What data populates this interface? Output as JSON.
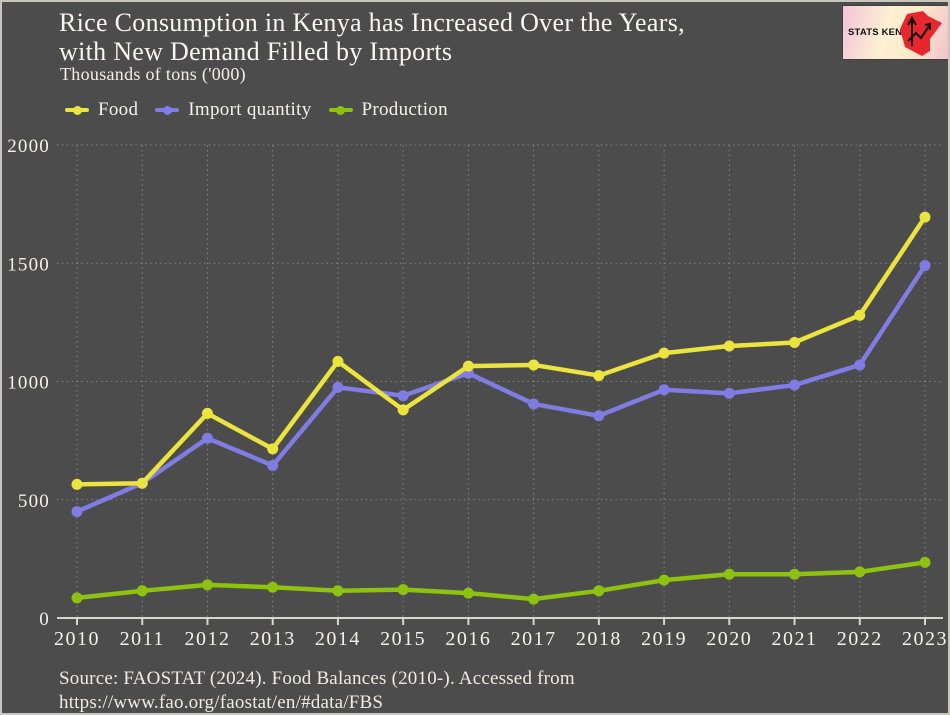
{
  "header": {
    "title_line1": "Rice Consumption in Kenya has Increased Over the Years,",
    "title_line2": "with New Demand Filled by Imports",
    "subtitle": "Thousands of tons ('000)"
  },
  "logo": {
    "text": "STATS KENYA"
  },
  "chart_data": {
    "type": "line",
    "title": "Rice Consumption in Kenya has Increased Over the Years, with New Demand Filled by Imports",
    "subtitle": "Thousands of tons ('000)",
    "ylabel": "Thousands of tons ('000)",
    "xlabel": "",
    "x": [
      2010,
      2011,
      2012,
      2013,
      2014,
      2015,
      2016,
      2017,
      2018,
      2019,
      2020,
      2021,
      2022,
      2023
    ],
    "ylim": [
      0,
      2000
    ],
    "yticks": [
      0,
      500,
      1000,
      1500,
      2000
    ],
    "grid": true,
    "legend_position": "top-left",
    "series": [
      {
        "name": "Food",
        "color": "#ECE43E",
        "values": [
          565,
          570,
          865,
          715,
          1085,
          880,
          1065,
          1070,
          1025,
          1120,
          1150,
          1165,
          1280,
          1695
        ]
      },
      {
        "name": "Import quantity",
        "color": "#7F7DE3",
        "values": [
          450,
          570,
          760,
          645,
          975,
          940,
          1035,
          905,
          855,
          965,
          950,
          985,
          1070,
          1490
        ]
      },
      {
        "name": "Production",
        "color": "#8DC30F",
        "values": [
          85,
          115,
          140,
          130,
          115,
          120,
          105,
          80,
          115,
          160,
          185,
          185,
          195,
          235
        ]
      }
    ]
  },
  "source": {
    "line1": "Source: FAOSTAT (2024). Food Balances (2010-). Accessed from",
    "line2": "https://www.fao.org/faostat/en/#data/FBS"
  },
  "colors": {
    "background": "#4c4c4c",
    "text": "#f7f4ed",
    "logo_red": "#e8262e"
  }
}
